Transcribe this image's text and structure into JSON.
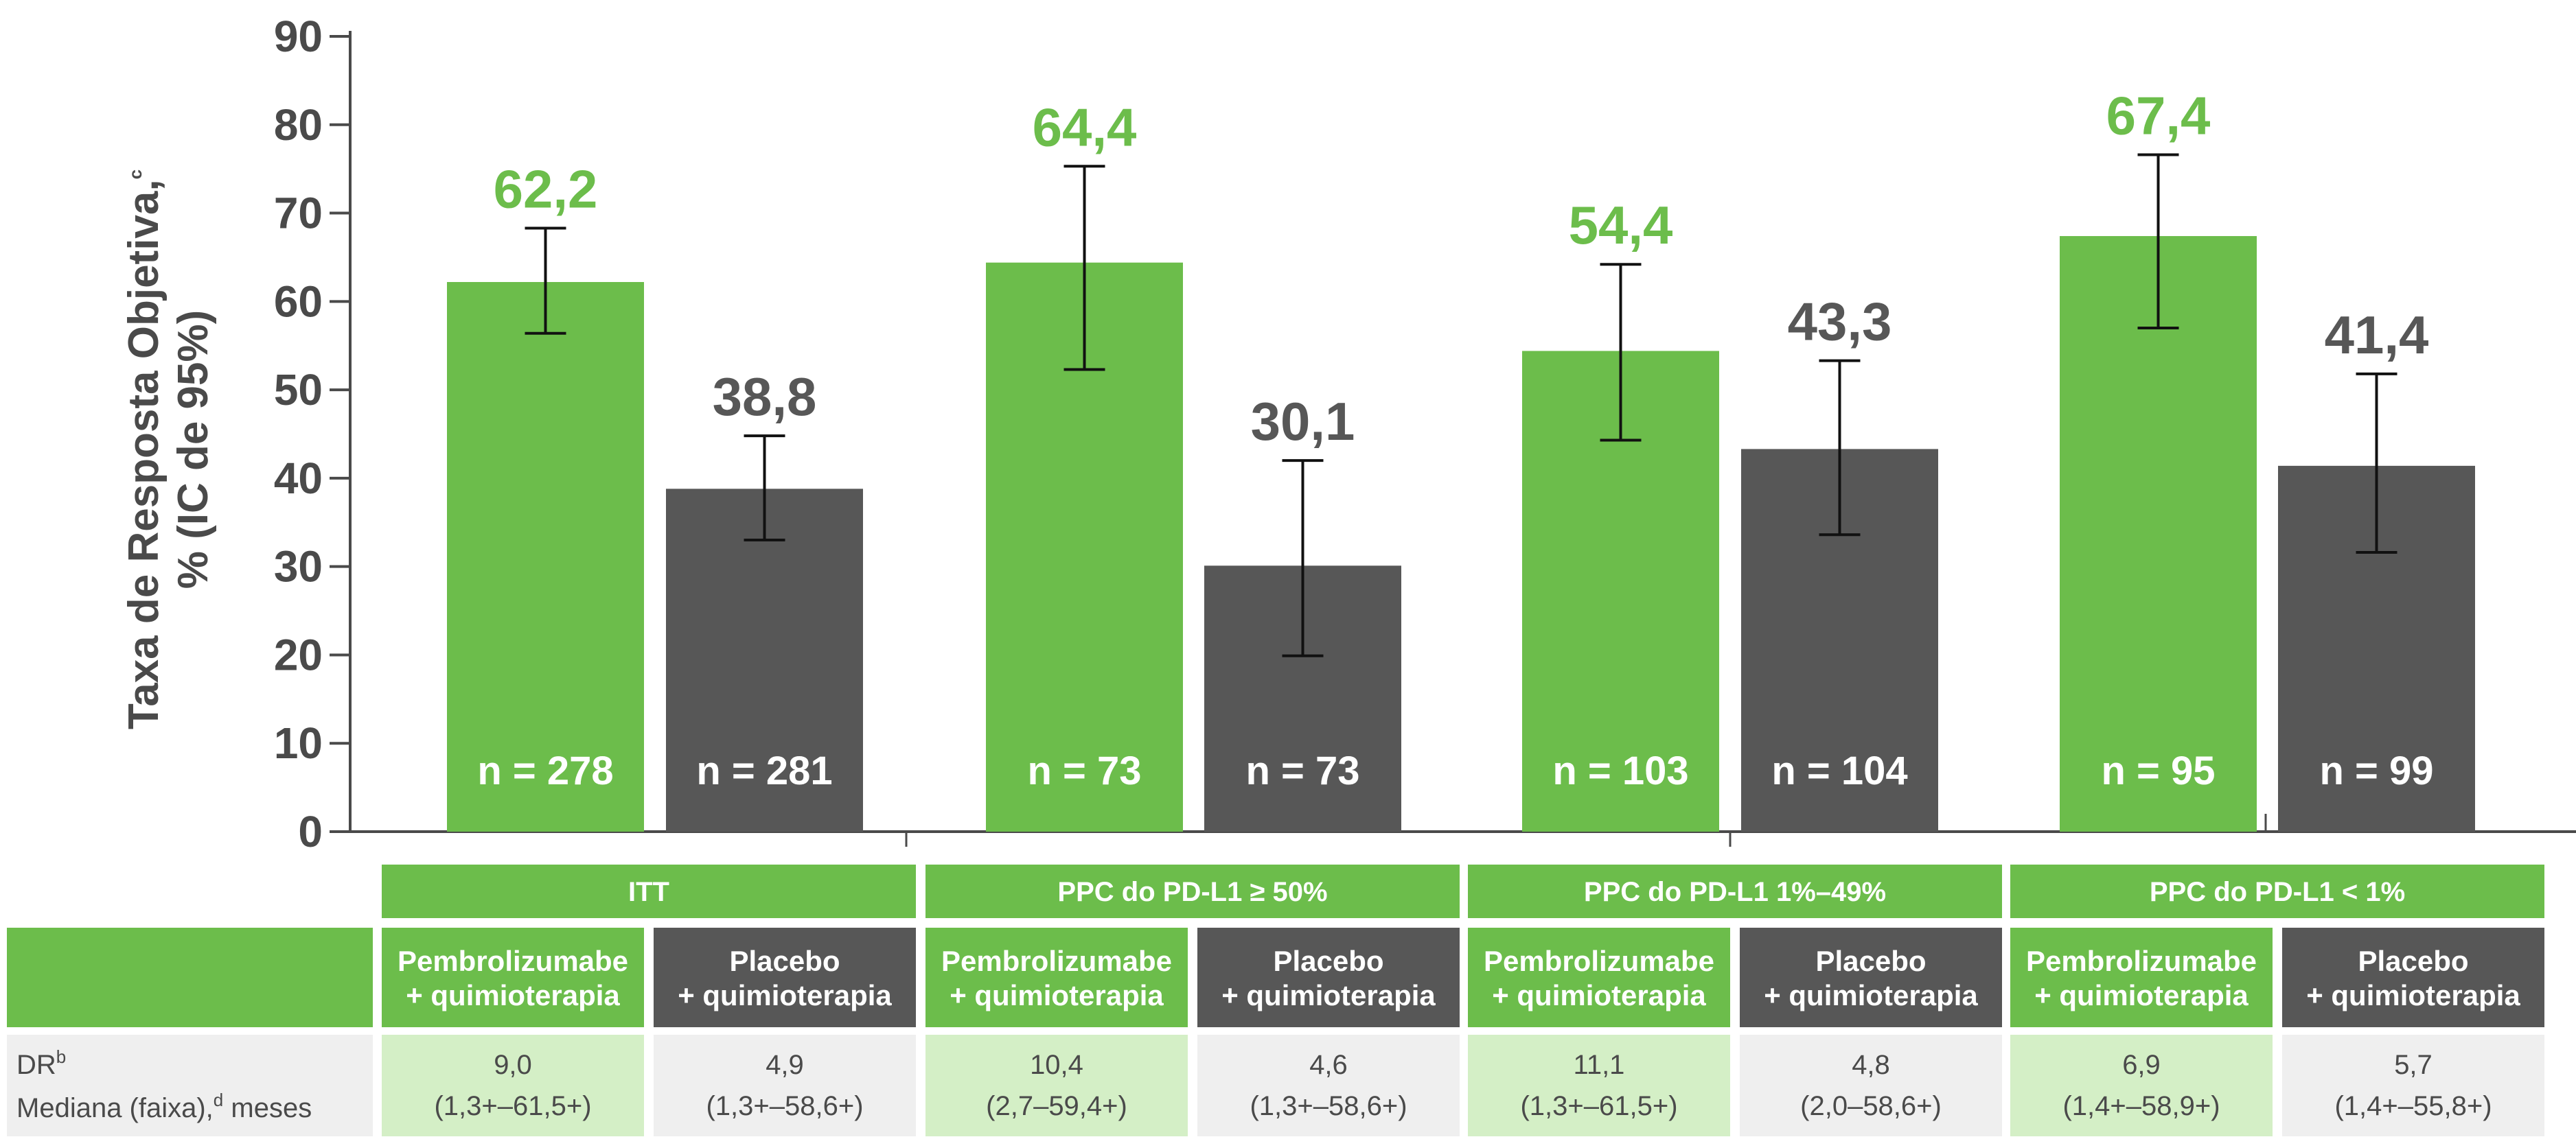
{
  "colors": {
    "pembro": "#6cbd4b",
    "placebo": "#575757",
    "axis": "#4a4a4a",
    "pembro_light": "#d4efc6",
    "placebo_light": "#efefef"
  },
  "chart_data": {
    "type": "bar",
    "ylabel_line1": "Taxa de Resposta Objetiva,",
    "ylabel_line1_sup": "c",
    "ylabel_line2": "% (IC de 95%)",
    "ylim": [
      0,
      90
    ],
    "yticks": [
      "0",
      "10",
      "20",
      "30",
      "40",
      "50",
      "60",
      "70",
      "80",
      "90"
    ],
    "groups": [
      {
        "name": "ITT",
        "bars": [
          {
            "arm": "pembro",
            "value": 62.2,
            "label": "62,2",
            "ci": [
              56.4,
              68.3
            ],
            "n": "n = 278"
          },
          {
            "arm": "placebo",
            "value": 38.8,
            "label": "38,8",
            "ci": [
              33.0,
              44.8
            ],
            "n": "n = 281"
          }
        ]
      },
      {
        "name": "PPC do PD-L1 ≥ 50%",
        "bars": [
          {
            "arm": "pembro",
            "value": 64.4,
            "label": "64,4",
            "ci": [
              52.3,
              75.3
            ],
            "n": "n = 73"
          },
          {
            "arm": "placebo",
            "value": 30.1,
            "label": "30,1",
            "ci": [
              19.9,
              42.0
            ],
            "n": "n = 73"
          }
        ]
      },
      {
        "name": "PPC do PD-L1 1%–49%",
        "bars": [
          {
            "arm": "pembro",
            "value": 54.4,
            "label": "54,4",
            "ci": [
              44.3,
              64.2
            ],
            "n": "n = 103"
          },
          {
            "arm": "placebo",
            "value": 43.3,
            "label": "43,3",
            "ci": [
              33.6,
              53.3
            ],
            "n": "n = 104"
          }
        ]
      },
      {
        "name": "PPC do PD-L1 < 1%",
        "bars": [
          {
            "arm": "pembro",
            "value": 67.4,
            "label": "67,4",
            "ci": [
              57.0,
              76.6
            ],
            "n": "n = 95"
          },
          {
            "arm": "placebo",
            "value": 41.4,
            "label": "41,4",
            "ci": [
              31.6,
              51.8
            ],
            "n": "n = 99"
          }
        ]
      }
    ]
  },
  "table": {
    "arms": {
      "pembro": [
        "Pembrolizumabe",
        "+ quimioterapia"
      ],
      "placebo": [
        "Placebo",
        "+ quimioterapia"
      ]
    },
    "dr_label_line1": "DR",
    "dr_label_line1_sup": "b",
    "dr_label_line2_a": "Mediana (faixa),",
    "dr_label_line2_sup": "d",
    "dr_label_line2_b": " meses",
    "dr_values": [
      [
        "9,0",
        "(1,3+–61,5+)"
      ],
      [
        "4,9",
        "(1,3+–58,6+)"
      ],
      [
        "10,4",
        "(2,7–59,4+)"
      ],
      [
        "4,6",
        "(1,3+–58,6+)"
      ],
      [
        "11,1",
        "(1,3+–61,5+)"
      ],
      [
        "4,8",
        "(2,0–58,6+)"
      ],
      [
        "6,9",
        "(1,4+–58,9+)"
      ],
      [
        "5,7",
        "(1,4+–55,8+)"
      ]
    ]
  }
}
